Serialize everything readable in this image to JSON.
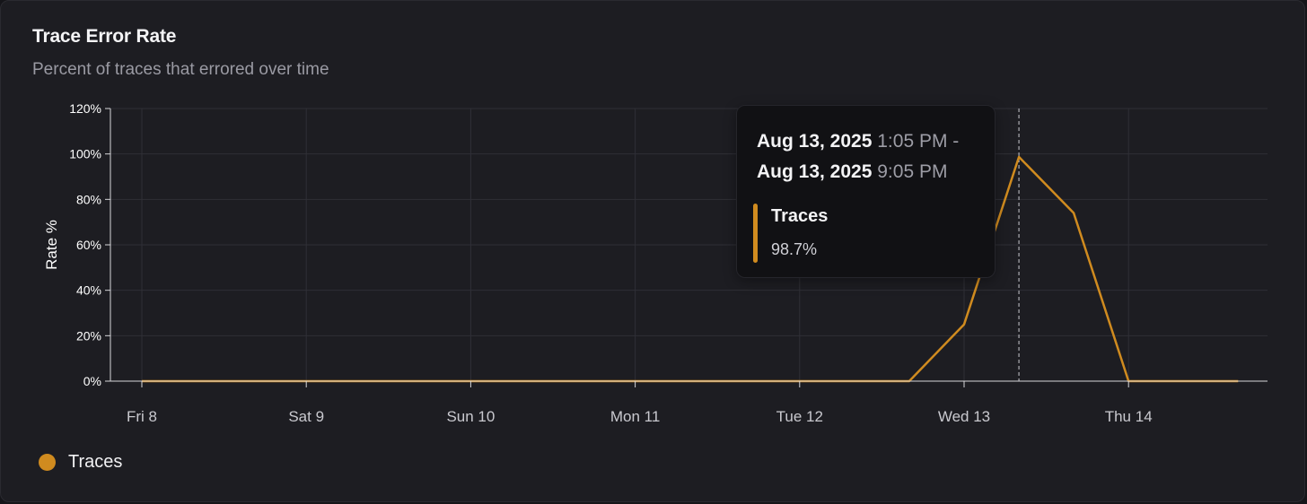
{
  "card": {
    "title": "Trace Error Rate",
    "subtitle": "Percent of traces that errored over time"
  },
  "chart_data": {
    "type": "line",
    "ylabel": "Rate %",
    "ylim": [
      0,
      120
    ],
    "yticks": [
      "0%",
      "20%",
      "40%",
      "60%",
      "80%",
      "100%",
      "120%"
    ],
    "x_tick_labels": [
      "Fri 8",
      "Sat 9",
      "Sun 10",
      "Mon 11",
      "Tue 12",
      "Wed 13",
      "Thu 14"
    ],
    "grid": true,
    "x": [
      "Aug 8 00:00",
      "Aug 8 08:00",
      "Aug 8 16:00",
      "Aug 9 00:00",
      "Aug 9 08:00",
      "Aug 9 16:00",
      "Aug 10 00:00",
      "Aug 10 08:00",
      "Aug 10 16:00",
      "Aug 11 00:00",
      "Aug 11 08:00",
      "Aug 11 16:00",
      "Aug 12 00:00",
      "Aug 12 08:00",
      "Aug 12 16:00",
      "Aug 13 00:00",
      "Aug 13 08:00",
      "Aug 13 16:00",
      "Aug 14 00:00",
      "Aug 14 08:00",
      "Aug 14 16:00"
    ],
    "series": [
      {
        "name": "Traces",
        "color": "#d08b1f",
        "values": [
          0,
          0,
          0,
          0,
          0,
          0,
          0,
          0,
          0,
          0,
          0,
          0,
          0,
          0,
          0,
          25,
          98.7,
          74,
          0,
          0,
          0
        ]
      }
    ],
    "legend": "bottom-left",
    "hover_index": 16
  },
  "tooltip": {
    "start_date": "Aug 13, 2025",
    "start_time": "1:05 PM -",
    "end_date": "Aug 13, 2025",
    "end_time": "9:05 PM",
    "series_name": "Traces",
    "series_value": "98.7%"
  },
  "legend": {
    "label": "Traces",
    "color": "#d08b1f"
  }
}
